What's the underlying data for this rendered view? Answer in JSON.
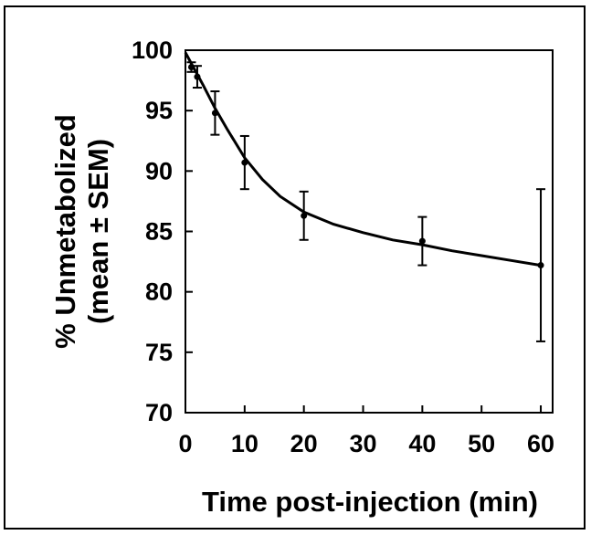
{
  "chart_data": {
    "type": "scatter",
    "title": "",
    "xlabel": "Time post-injection (min)",
    "ylabel_line1": "% Unmetabolized",
    "ylabel_line2": "(mean ± SEM)",
    "xlim": [
      0,
      62
    ],
    "ylim": [
      70,
      100
    ],
    "xticks": [
      0,
      10,
      20,
      30,
      40,
      50,
      60
    ],
    "yticks": [
      70,
      75,
      80,
      85,
      90,
      95,
      100
    ],
    "grid": false,
    "series": [
      {
        "points": [
          {
            "x": 1,
            "y": 98.6,
            "err": 0.4
          },
          {
            "x": 2,
            "y": 97.8,
            "err": 0.9
          },
          {
            "x": 5,
            "y": 94.8,
            "err": 1.8
          },
          {
            "x": 10,
            "y": 90.7,
            "err": 2.2
          },
          {
            "x": 20,
            "y": 86.3,
            "err": 2.0
          },
          {
            "x": 40,
            "y": 84.2,
            "err": 2.0
          },
          {
            "x": 60,
            "y": 82.2,
            "err": 6.3
          }
        ],
        "fit_curve": [
          {
            "x": 0,
            "y": 99.8
          },
          {
            "x": 1,
            "y": 98.9
          },
          {
            "x": 2,
            "y": 98.0
          },
          {
            "x": 3,
            "y": 97.1
          },
          {
            "x": 5,
            "y": 95.2
          },
          {
            "x": 7,
            "y": 93.5
          },
          {
            "x": 10,
            "y": 91.1
          },
          {
            "x": 13,
            "y": 89.3
          },
          {
            "x": 16,
            "y": 87.9
          },
          {
            "x": 20,
            "y": 86.6
          },
          {
            "x": 25,
            "y": 85.6
          },
          {
            "x": 30,
            "y": 84.9
          },
          {
            "x": 35,
            "y": 84.3
          },
          {
            "x": 40,
            "y": 83.9
          },
          {
            "x": 45,
            "y": 83.4
          },
          {
            "x": 50,
            "y": 83.0
          },
          {
            "x": 55,
            "y": 82.6
          },
          {
            "x": 60,
            "y": 82.2
          }
        ]
      }
    ]
  }
}
